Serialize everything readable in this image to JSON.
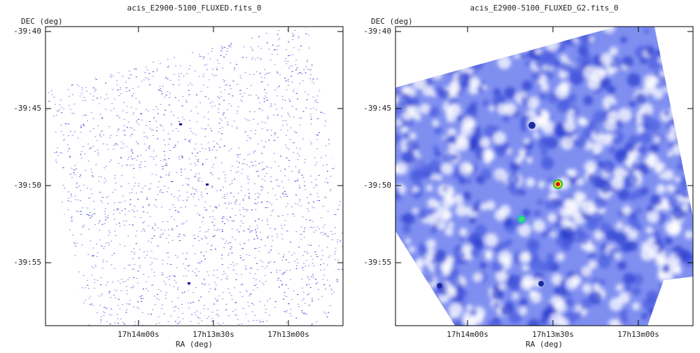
{
  "chart_data": [
    {
      "type": "image",
      "title": "acis_E2900-5100_FLUXED.fits_0",
      "xlabel": "RA (deg)",
      "ylabel": "DEC (deg)",
      "xlim": [
        258.655,
        258.159
      ],
      "ylim": [
        -39.9848,
        -39.6614
      ],
      "xticks": [
        {
          "value": 258.5,
          "label": "17h14m00s"
        },
        {
          "value": 258.375,
          "label": "17h13m30s"
        },
        {
          "value": 258.25,
          "label": "17h13m00s"
        }
      ],
      "yticks": [
        {
          "value": -39.6667,
          "label": "-39:40"
        },
        {
          "value": -39.75,
          "label": "-39:45"
        },
        {
          "value": -39.8333,
          "label": "-39:50"
        },
        {
          "value": -39.9167,
          "label": "-39:55"
        }
      ]
    },
    {
      "type": "image",
      "title": "acis_E2900-5100_FLUXED_G2.fits_0",
      "xlabel": "RA (deg)",
      "ylabel": "DEC (deg)",
      "xlim": [
        258.6055,
        258.17
      ],
      "ylim": [
        -39.9848,
        -39.6614
      ],
      "xticks": [
        {
          "value": 258.5,
          "label": "17h14m00s"
        },
        {
          "value": 258.375,
          "label": "17h13m30s"
        },
        {
          "value": 258.25,
          "label": "17h13m00s"
        }
      ],
      "yticks": [
        {
          "value": -39.6667,
          "label": "-39:40"
        },
        {
          "value": -39.75,
          "label": "-39:45"
        },
        {
          "value": -39.8333,
          "label": "-39:50"
        },
        {
          "value": -39.9167,
          "label": "-39:55"
        }
      ]
    }
  ]
}
